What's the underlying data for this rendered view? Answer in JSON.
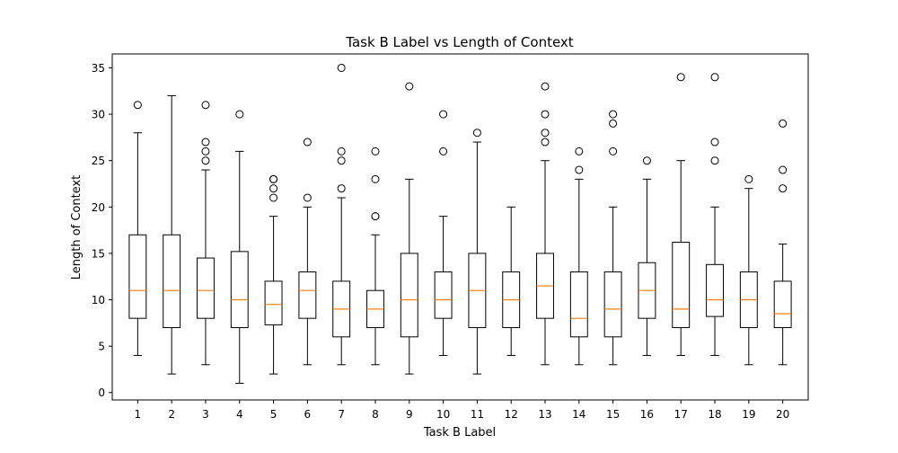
{
  "chart_data": {
    "type": "box",
    "title": "Task B Label vs Length of Context",
    "xlabel": "Task B Label",
    "ylabel": "Length of Context",
    "ylim": [
      -0.8,
      36.5
    ],
    "yticks": [
      0,
      5,
      10,
      15,
      20,
      25,
      30,
      35
    ],
    "grid": false,
    "colors": {
      "box": "#000000",
      "median": "#ff7f0e"
    },
    "categories": [
      "1",
      "2",
      "3",
      "4",
      "5",
      "6",
      "7",
      "8",
      "9",
      "10",
      "11",
      "12",
      "13",
      "14",
      "15",
      "16",
      "17",
      "18",
      "19",
      "20"
    ],
    "boxes": [
      {
        "label": "1",
        "whisker_low": 4,
        "q1": 8,
        "median": 11,
        "q3": 17,
        "whisker_high": 28,
        "fliers": [
          31
        ]
      },
      {
        "label": "2",
        "whisker_low": 2,
        "q1": 7,
        "median": 11,
        "q3": 17,
        "whisker_high": 32,
        "fliers": []
      },
      {
        "label": "3",
        "whisker_low": 3,
        "q1": 8,
        "median": 11,
        "q3": 14.5,
        "whisker_high": 24,
        "fliers": [
          25,
          26,
          27,
          31
        ]
      },
      {
        "label": "4",
        "whisker_low": 1,
        "q1": 7,
        "median": 10,
        "q3": 15.2,
        "whisker_high": 26,
        "fliers": [
          30
        ]
      },
      {
        "label": "5",
        "whisker_low": 2,
        "q1": 7.3,
        "median": 9.5,
        "q3": 12,
        "whisker_high": 19,
        "fliers": [
          21,
          22,
          23,
          23
        ]
      },
      {
        "label": "6",
        "whisker_low": 3,
        "q1": 8,
        "median": 11,
        "q3": 13,
        "whisker_high": 20,
        "fliers": [
          21,
          27
        ]
      },
      {
        "label": "7",
        "whisker_low": 3,
        "q1": 6,
        "median": 9,
        "q3": 12,
        "whisker_high": 21,
        "fliers": [
          22,
          25,
          26,
          35
        ]
      },
      {
        "label": "8",
        "whisker_low": 3,
        "q1": 7,
        "median": 9,
        "q3": 11,
        "whisker_high": 17,
        "fliers": [
          19,
          19,
          23,
          26
        ]
      },
      {
        "label": "9",
        "whisker_low": 2,
        "q1": 6,
        "median": 10,
        "q3": 15,
        "whisker_high": 23,
        "fliers": [
          33
        ]
      },
      {
        "label": "10",
        "whisker_low": 4,
        "q1": 8,
        "median": 10,
        "q3": 13,
        "whisker_high": 19,
        "fliers": [
          26,
          30
        ]
      },
      {
        "label": "11",
        "whisker_low": 2,
        "q1": 7,
        "median": 11,
        "q3": 15,
        "whisker_high": 27,
        "fliers": [
          28
        ]
      },
      {
        "label": "12",
        "whisker_low": 4,
        "q1": 7,
        "median": 10,
        "q3": 13,
        "whisker_high": 20,
        "fliers": []
      },
      {
        "label": "13",
        "whisker_low": 3,
        "q1": 8,
        "median": 11.5,
        "q3": 15,
        "whisker_high": 25,
        "fliers": [
          27,
          28,
          30,
          33
        ]
      },
      {
        "label": "14",
        "whisker_low": 3,
        "q1": 6,
        "median": 8,
        "q3": 13,
        "whisker_high": 23,
        "fliers": [
          24,
          26
        ]
      },
      {
        "label": "15",
        "whisker_low": 3,
        "q1": 6,
        "median": 9,
        "q3": 13,
        "whisker_high": 20,
        "fliers": [
          26,
          29,
          30
        ]
      },
      {
        "label": "16",
        "whisker_low": 4,
        "q1": 8,
        "median": 11,
        "q3": 14,
        "whisker_high": 23,
        "fliers": [
          25
        ]
      },
      {
        "label": "17",
        "whisker_low": 4,
        "q1": 7,
        "median": 9,
        "q3": 16.2,
        "whisker_high": 25,
        "fliers": [
          34
        ]
      },
      {
        "label": "18",
        "whisker_low": 4,
        "q1": 8.2,
        "median": 10,
        "q3": 13.8,
        "whisker_high": 20,
        "fliers": [
          25,
          27,
          34
        ]
      },
      {
        "label": "19",
        "whisker_low": 3,
        "q1": 7,
        "median": 10,
        "q3": 13,
        "whisker_high": 22,
        "fliers": [
          23
        ]
      },
      {
        "label": "20",
        "whisker_low": 3,
        "q1": 7,
        "median": 8.5,
        "q3": 12,
        "whisker_high": 16,
        "fliers": [
          22,
          24,
          29
        ]
      }
    ]
  }
}
